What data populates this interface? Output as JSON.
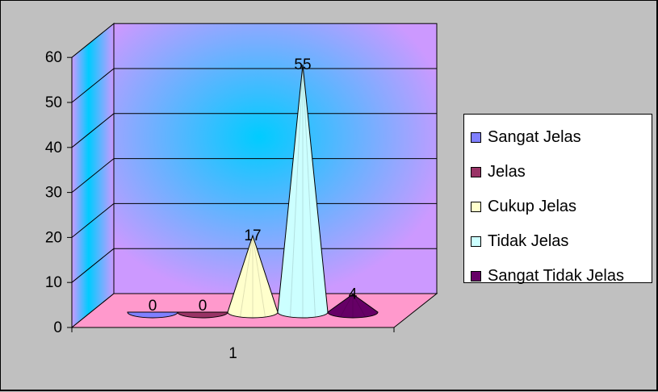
{
  "chart_data": {
    "type": "bar",
    "style": "3d-cone",
    "title": "",
    "xlabel": "",
    "ylabel": "",
    "categories": [
      "1"
    ],
    "ylim": [
      0,
      60
    ],
    "yticks": [
      "0",
      "10",
      "20",
      "30",
      "40",
      "50",
      "60"
    ],
    "grid": true,
    "legend_position": "right",
    "series": [
      {
        "name": "Sangat Jelas",
        "values": [
          0
        ],
        "label": "0",
        "color": "#8080ff"
      },
      {
        "name": "Jelas",
        "values": [
          0
        ],
        "label": "0",
        "color": "#993366"
      },
      {
        "name": "Cukup Jelas",
        "values": [
          17
        ],
        "label": "17",
        "color": "#ffffcc"
      },
      {
        "name": "Tidak Jelas",
        "values": [
          55
        ],
        "label": "55",
        "color": "#ccffff"
      },
      {
        "name": "Sangat Tidak Jelas",
        "values": [
          4
        ],
        "label": "4",
        "color": "#660066"
      }
    ],
    "colors": {
      "background": "#c0c0c0",
      "back_wall": "#cc99ff",
      "back_wall_glow": "#00ccff",
      "floor": "#ff99cc"
    }
  }
}
